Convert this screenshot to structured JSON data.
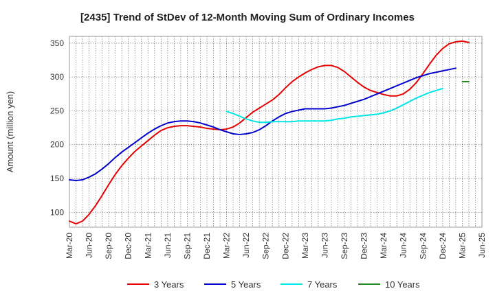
{
  "chart_data": {
    "type": "line",
    "title": "[2435]  Trend of StDev of 12-Month Moving Sum of Ordinary Incomes",
    "xlabel": "",
    "ylabel": "Amount (million yen)",
    "ylim": [
      78,
      360
    ],
    "yticks": [
      100,
      150,
      200,
      250,
      300,
      350
    ],
    "xticks": [
      "Mar-20",
      "Jun-20",
      "Sep-20",
      "Dec-20",
      "Mar-21",
      "Jun-21",
      "Sep-21",
      "Dec-21",
      "Mar-22",
      "Jun-22",
      "Sep-22",
      "Dec-22",
      "Mar-23",
      "Jun-23",
      "Sep-23",
      "Dec-23",
      "Mar-24",
      "Jun-24",
      "Sep-24",
      "Dec-24",
      "Mar-25",
      "Jun-25"
    ],
    "grid": true,
    "legend_position": "bottom",
    "series": [
      {
        "name": "3 Years",
        "color": "#e60000",
        "x_start_index": 0,
        "values": [
          87,
          83,
          87,
          97,
          110,
          125,
          141,
          156,
          169,
          180,
          190,
          198,
          206,
          214,
          221,
          225,
          227,
          228,
          228,
          227,
          226,
          224,
          223,
          222,
          223,
          226,
          232,
          240,
          248,
          254,
          260,
          266,
          274,
          284,
          293,
          300,
          306,
          311,
          315,
          317,
          317,
          314,
          308,
          300,
          292,
          285,
          280,
          277,
          274,
          272,
          272,
          275,
          282,
          292,
          305,
          319,
          332,
          342,
          349,
          352,
          353,
          351
        ]
      },
      {
        "name": "5 Years",
        "color": "#0000cc",
        "x_start_index": 0,
        "values": [
          148,
          147,
          148,
          152,
          157,
          164,
          172,
          181,
          189,
          196,
          203,
          210,
          217,
          223,
          228,
          232,
          234,
          235,
          235,
          234,
          232,
          229,
          226,
          222,
          219,
          216,
          215,
          216,
          218,
          222,
          228,
          235,
          241,
          246,
          249,
          251,
          253,
          253,
          253,
          253,
          254,
          256,
          258,
          261,
          264,
          267,
          271,
          275,
          279,
          283,
          287,
          291,
          295,
          299,
          302,
          305,
          307,
          309,
          311,
          313
        ]
      },
      {
        "name": "7 Years",
        "color": "#00e5e5",
        "x_start_index": 24,
        "values": [
          249,
          246,
          242,
          238,
          235,
          233,
          233,
          234,
          234,
          234,
          234,
          235,
          235,
          235,
          235,
          235,
          236,
          238,
          239,
          241,
          242,
          243,
          244,
          245,
          247,
          250,
          254,
          259,
          264,
          269,
          273,
          277,
          280,
          283
        ]
      },
      {
        "name": "10 Years",
        "color": "#228b22",
        "x_start_index": 60,
        "values": [
          293,
          293
        ]
      }
    ]
  }
}
